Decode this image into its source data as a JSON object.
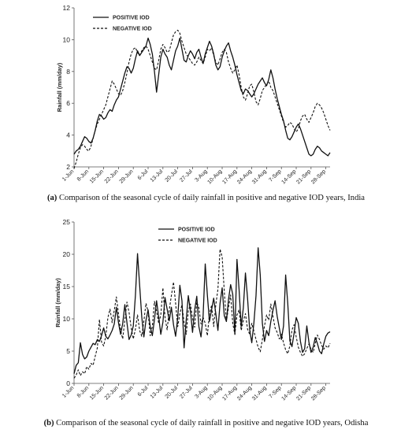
{
  "chart_data": [
    {
      "type": "line",
      "ylabel": "Rainfall (mm/day)",
      "ylim": [
        2,
        12
      ],
      "yticks": [
        2,
        4,
        6,
        8,
        10,
        12
      ],
      "tick_labels": [
        "1-Jun",
        "8-Jun",
        "15-Jun",
        "22-Jun",
        "29-Jun",
        "6-Jul",
        "13-Jul",
        "20-Jul",
        "27-Jul",
        "3-Aug",
        "10-Aug",
        "17-Aug",
        "24-Aug",
        "31-Aug",
        "7-Sep",
        "14-Sep",
        "21-Sep",
        "28-Sep"
      ],
      "n_days": 122,
      "legend_position": "top-left",
      "series": [
        {
          "name": "POSITIVE IOD",
          "style": "solid",
          "values": [
            2.8,
            3.0,
            3.1,
            3.3,
            3.6,
            3.9,
            3.8,
            3.6,
            3.5,
            3.8,
            4.3,
            4.9,
            5.3,
            5.2,
            5.0,
            5.1,
            5.4,
            5.6,
            5.5,
            5.9,
            6.2,
            6.4,
            6.9,
            7.4,
            7.9,
            8.3,
            8.2,
            7.9,
            8.2,
            8.8,
            9.3,
            9.0,
            9.2,
            9.4,
            9.6,
            10.1,
            9.7,
            9.1,
            8.0,
            6.7,
            7.8,
            8.9,
            9.4,
            9.1,
            8.9,
            8.4,
            8.1,
            8.7,
            9.3,
            9.6,
            10.1,
            9.4,
            8.7,
            8.6,
            9.0,
            9.3,
            9.1,
            8.8,
            9.2,
            9.4,
            8.9,
            8.5,
            9.1,
            9.5,
            9.9,
            9.6,
            9.1,
            8.4,
            8.1,
            8.3,
            8.9,
            9.3,
            9.6,
            9.8,
            9.3,
            8.9,
            8.4,
            7.8,
            7.3,
            6.8,
            6.6,
            6.9,
            6.8,
            6.6,
            6.4,
            6.6,
            6.9,
            7.2,
            7.4,
            7.6,
            7.3,
            7.1,
            7.5,
            8.1,
            7.6,
            6.9,
            6.3,
            5.8,
            5.3,
            4.9,
            4.3,
            3.8,
            3.7,
            3.9,
            4.2,
            4.5,
            4.7,
            4.4,
            4.0,
            3.6,
            3.2,
            2.8,
            2.7,
            2.8,
            3.1,
            3.3,
            3.2,
            3.0,
            2.9,
            2.8,
            2.7,
            2.9
          ]
        },
        {
          "name": "NEGATIVE IOD",
          "style": "dashed",
          "values": [
            1.9,
            2.3,
            2.8,
            3.2,
            3.4,
            3.3,
            3.1,
            3.0,
            3.3,
            3.8,
            4.3,
            4.7,
            5.0,
            5.3,
            5.6,
            5.9,
            6.4,
            6.9,
            7.4,
            7.2,
            6.9,
            6.6,
            6.5,
            6.8,
            7.3,
            7.9,
            8.6,
            9.1,
            9.4,
            9.5,
            9.2,
            9.0,
            9.3,
            9.5,
            9.6,
            9.4,
            9.0,
            8.6,
            8.2,
            8.1,
            8.7,
            9.4,
            9.7,
            9.5,
            9.2,
            9.3,
            9.8,
            10.3,
            10.5,
            10.6,
            10.4,
            9.9,
            9.5,
            9.1,
            8.9,
            8.7,
            8.5,
            8.4,
            8.6,
            8.9,
            8.7,
            8.5,
            8.9,
            9.4,
            9.3,
            9.5,
            9.0,
            8.6,
            8.4,
            8.8,
            9.2,
            9.4,
            9.2,
            8.6,
            8.2,
            7.9,
            8.1,
            8.4,
            7.8,
            7.0,
            6.4,
            6.2,
            6.6,
            7.1,
            7.2,
            6.7,
            6.1,
            5.9,
            6.3,
            6.8,
            7.0,
            7.2,
            7.4,
            7.0,
            6.8,
            6.4,
            6.0,
            5.6,
            5.2,
            4.8,
            4.5,
            4.6,
            4.8,
            4.7,
            4.4,
            4.2,
            4.4,
            4.9,
            5.2,
            5.3,
            5.0,
            4.8,
            5.1,
            5.4,
            5.8,
            6.0,
            5.9,
            5.7,
            5.4,
            5.0,
            4.6,
            4.3
          ]
        }
      ]
    },
    {
      "type": "line",
      "ylabel": "Rainfall (mm/day)",
      "ylim": [
        0,
        25
      ],
      "yticks": [
        0,
        5,
        10,
        15,
        20,
        25
      ],
      "tick_labels": [
        "1-Jun",
        "8-Jun",
        "15-Jun",
        "22-Jun",
        "29-Jun",
        "6-Jul",
        "13-Jul",
        "20-Jul",
        "27-Jul",
        "3-Aug",
        "10-Aug",
        "17-Aug",
        "24-Aug",
        "31-Aug",
        "7-Sep",
        "14-Sep",
        "21-Sep",
        "28-Sep"
      ],
      "n_days": 122,
      "legend_position": "top-center",
      "series": [
        {
          "name": "POSITIVE IOD",
          "style": "solid",
          "values": [
            1.5,
            2.8,
            3.2,
            6.3,
            4.5,
            3.8,
            4.1,
            5.0,
            5.6,
            6.2,
            6.0,
            6.8,
            6.5,
            7.4,
            8.6,
            7.3,
            6.9,
            7.5,
            8.2,
            9.2,
            11.8,
            9.4,
            7.6,
            9.3,
            12.2,
            9.4,
            6.8,
            7.5,
            8.9,
            13.6,
            20.1,
            15.2,
            10.3,
            7.2,
            9.8,
            11.4,
            8.8,
            7.4,
            9.9,
            12.8,
            10.3,
            7.6,
            9.5,
            13.3,
            11.5,
            9.7,
            11.8,
            9.1,
            7.3,
            10.2,
            15.2,
            12.8,
            5.5,
            9.8,
            13.6,
            11.2,
            7.9,
            11.4,
            13.5,
            8.8,
            7.2,
            10.5,
            18.5,
            13.7,
            9.6,
            11.4,
            13.2,
            10.8,
            8.2,
            12.4,
            14.8,
            10.5,
            9.6,
            13.0,
            15.3,
            13.8,
            7.6,
            19.2,
            14.5,
            8.8,
            11.7,
            17.1,
            13.2,
            8.3,
            6.3,
            9.4,
            13.6,
            21.0,
            16.8,
            9.3,
            6.5,
            8.2,
            7.4,
            9.6,
            11.3,
            12.8,
            10.4,
            8.6,
            6.8,
            8.9,
            16.8,
            12.4,
            6.6,
            5.7,
            7.8,
            10.2,
            9.3,
            6.5,
            4.8,
            5.4,
            8.9,
            6.4,
            4.8,
            5.6,
            7.1,
            6.2,
            5.0,
            4.6,
            6.1,
            7.3,
            7.8,
            8.0
          ]
        },
        {
          "name": "NEGATIVE IOD",
          "style": "dashed",
          "values": [
            0.8,
            1.3,
            2.1,
            1.2,
            1.8,
            1.5,
            2.6,
            2.2,
            3.1,
            2.8,
            4.2,
            5.5,
            9.9,
            6.4,
            5.8,
            7.3,
            10.2,
            11.5,
            9.4,
            11.3,
            13.4,
            10.8,
            8.2,
            6.9,
            9.8,
            12.6,
            11.0,
            8.6,
            6.9,
            8.4,
            10.6,
            8.2,
            7.3,
            9.7,
            12.4,
            11.1,
            7.4,
            8.8,
            12.7,
            11.2,
            9.3,
            10.6,
            14.8,
            10.2,
            8.3,
            11.4,
            13.6,
            15.7,
            12.4,
            8.8,
            10.8,
            12.2,
            9.4,
            7.6,
            11.2,
            12.3,
            10.1,
            8.7,
            12.6,
            11.7,
            9.2,
            10.2,
            9.3,
            7.4,
            10.8,
            12.1,
            8.8,
            12.2,
            14.6,
            20.8,
            19.6,
            14.3,
            9.6,
            11.8,
            13.7,
            9.3,
            7.6,
            10.6,
            11.4,
            8.2,
            9.7,
            10.8,
            8.4,
            7.6,
            9.3,
            8.1,
            6.8,
            5.6,
            4.9,
            6.8,
            8.9,
            10.6,
            9.8,
            12.3,
            10.4,
            8.6,
            7.9,
            6.9,
            7.6,
            6.3,
            5.2,
            4.6,
            5.8,
            8.3,
            9.1,
            7.2,
            5.6,
            4.8,
            4.2,
            4.6,
            5.4,
            6.1,
            5.3,
            4.8,
            6.2,
            7.5,
            6.8,
            5.9,
            5.3,
            5.8,
            5.5,
            6.2
          ]
        }
      ]
    }
  ],
  "captions": {
    "a_label": "(a)",
    "a_text": " Comparison of the seasonal cycle of daily rainfall in positive and negative IOD years, India",
    "b_label": "(b)",
    "b_text": " Comparison of the seasonal cycle of daily rainfall in positive and negative IOD years, Odisha"
  }
}
